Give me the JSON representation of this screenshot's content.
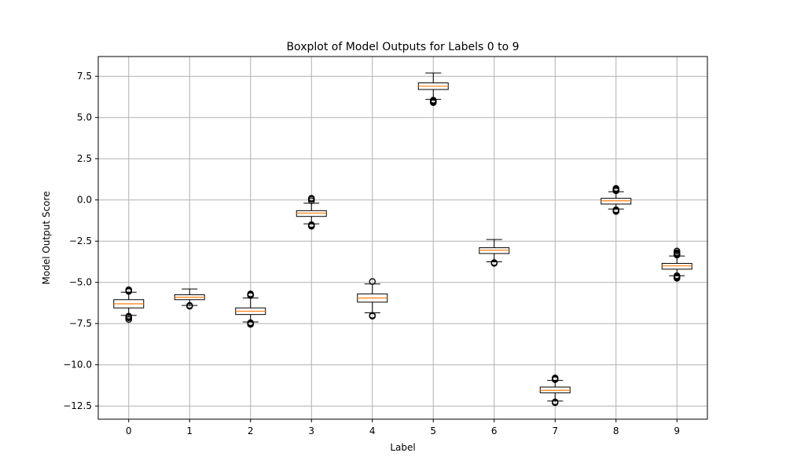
{
  "chart_data": {
    "type": "boxplot",
    "title": "Boxplot of Model Outputs for Labels 0 to 9",
    "xlabel": "Label",
    "ylabel": "Model Output Score",
    "categories": [
      "0",
      "1",
      "2",
      "3",
      "4",
      "5",
      "6",
      "7",
      "8",
      "9"
    ],
    "ylim": [
      -13.3,
      8.7
    ],
    "yticks": [
      7.5,
      5.0,
      2.5,
      0.0,
      -2.5,
      -5.0,
      -7.5,
      -10.0,
      -12.5
    ],
    "ytick_labels": [
      "7.5",
      "5.0",
      "2.5",
      "0.0",
      "−2.5",
      "−5.0",
      "−7.5",
      "−10.0",
      "−12.5"
    ],
    "grid": true,
    "colors": {
      "box": "#000000",
      "median": "#ff7f0e",
      "grid": "#b0b0b0"
    },
    "boxes": [
      {
        "label": "0",
        "whislo": -7.0,
        "q1": -6.55,
        "med": -6.3,
        "q3": -6.05,
        "whishi": -5.6,
        "fliers": [
          -7.05,
          -7.1,
          -7.15,
          -7.25,
          -5.5,
          -5.45,
          -5.55
        ]
      },
      {
        "label": "1",
        "whislo": -6.4,
        "q1": -6.05,
        "med": -5.9,
        "q3": -5.75,
        "whishi": -5.4,
        "fliers": [
          -6.4,
          -6.45
        ]
      },
      {
        "label": "2",
        "whislo": -7.4,
        "q1": -6.95,
        "med": -6.75,
        "q3": -6.55,
        "whishi": -5.95,
        "fliers": [
          -7.5,
          -7.55,
          -7.45,
          -5.75,
          -5.8,
          -5.7
        ]
      },
      {
        "label": "3",
        "whislo": -1.45,
        "q1": -1.0,
        "med": -0.8,
        "q3": -0.65,
        "whishi": -0.2,
        "fliers": [
          -1.5,
          -1.55,
          -1.6,
          -0.05,
          0.05,
          0.1
        ]
      },
      {
        "label": "4",
        "whislo": -6.85,
        "q1": -6.2,
        "med": -5.95,
        "q3": -5.7,
        "whishi": -5.1,
        "fliers": [
          -7.05,
          -7.0,
          -4.95
        ]
      },
      {
        "label": "5",
        "whislo": 6.1,
        "q1": 6.7,
        "med": 6.9,
        "q3": 7.1,
        "whishi": 7.7,
        "fliers": [
          6.05,
          6.0,
          5.95,
          5.9
        ]
      },
      {
        "label": "6",
        "whislo": -3.75,
        "q1": -3.25,
        "med": -3.05,
        "q3": -2.9,
        "whishi": -2.4,
        "fliers": [
          -3.8,
          -3.85
        ]
      },
      {
        "label": "7",
        "whislo": -12.2,
        "q1": -11.7,
        "med": -11.55,
        "q3": -11.35,
        "whishi": -10.95,
        "fliers": [
          -12.25,
          -12.3,
          -10.85,
          -10.8,
          -10.9
        ]
      },
      {
        "label": "8",
        "whislo": -0.55,
        "q1": -0.25,
        "med": -0.05,
        "q3": 0.1,
        "whishi": 0.5,
        "fliers": [
          -0.65,
          -0.7,
          -0.6,
          0.6,
          0.65,
          0.7,
          0.55
        ]
      },
      {
        "label": "9",
        "whislo": -4.6,
        "q1": -4.2,
        "med": -4.0,
        "q3": -3.85,
        "whishi": -3.4,
        "fliers": [
          -4.6,
          -4.65,
          -4.7,
          -4.75,
          -3.3,
          -3.2,
          -3.1,
          -3.25,
          -3.35
        ]
      }
    ]
  }
}
